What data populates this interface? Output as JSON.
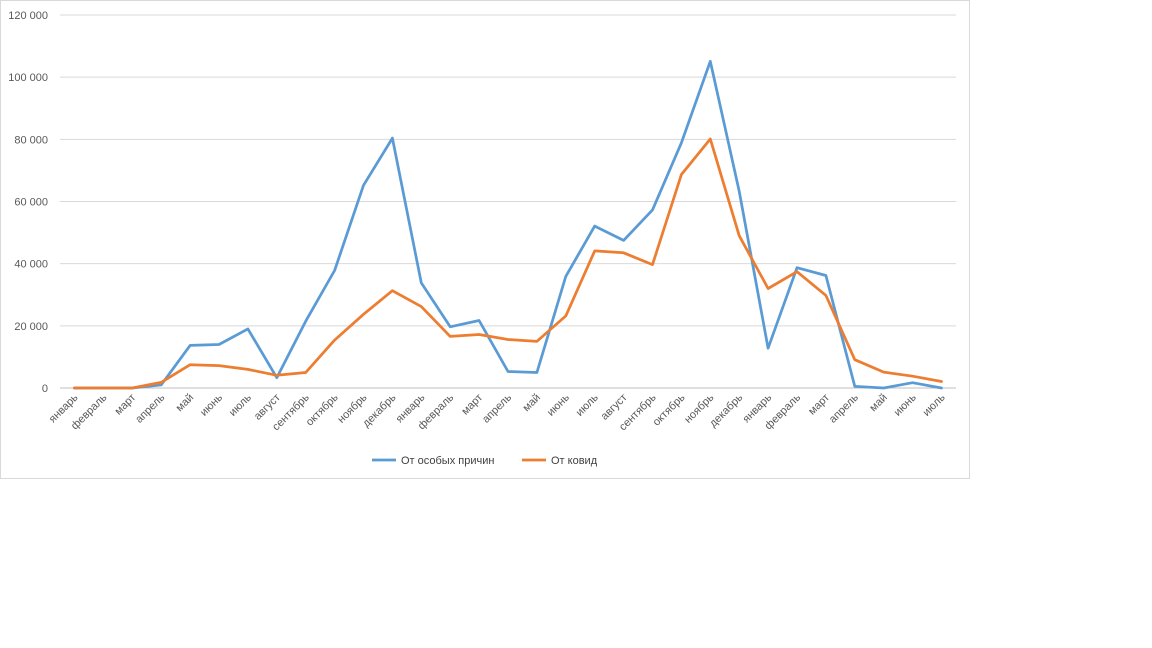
{
  "chart_data": {
    "type": "line",
    "title": "",
    "xlabel": "",
    "ylabel": "",
    "ylim": [
      0,
      120000
    ],
    "yticks": [
      0,
      20000,
      40000,
      60000,
      80000,
      100000,
      120000
    ],
    "ytick_labels": [
      "0",
      "20 000",
      "40 000",
      "60 000",
      "80 000",
      "100 000",
      "120 000"
    ],
    "grid": true,
    "legend_position": "bottom",
    "categories": [
      "январь",
      "февраль",
      "март",
      "апрель",
      "май",
      "июнь",
      "июль",
      "август",
      "сентябрь",
      "октябрь",
      "ноябрь",
      "декабрь",
      "январь",
      "февраль",
      "март",
      "апрель",
      "май",
      "июнь",
      "июль",
      "август",
      "сентябрь",
      "октябрь",
      "ноябрь",
      "декабрь",
      "январь",
      "февраль",
      "март",
      "апрель",
      "май",
      "июнь",
      "июль"
    ],
    "series": [
      {
        "name": "От особых причин",
        "color": "#5B9BD5",
        "values": [
          0,
          0,
          0,
          1000,
          13700,
          14000,
          19000,
          3300,
          21500,
          37800,
          65200,
          80400,
          33800,
          19700,
          21700,
          5300,
          5000,
          35900,
          52100,
          47500,
          57300,
          78900,
          105100,
          63300,
          12800,
          38700,
          36200,
          500,
          0,
          1700,
          0
        ]
      },
      {
        "name": "От ковид",
        "color": "#ED7D31",
        "values": [
          0,
          0,
          0,
          1800,
          7500,
          7200,
          6000,
          4100,
          5000,
          15400,
          23700,
          31300,
          26200,
          16600,
          17200,
          15600,
          15000,
          23200,
          44100,
          43500,
          39700,
          68700,
          80100,
          49000,
          32000,
          37400,
          29800,
          9100,
          5100,
          3800,
          2100
        ]
      }
    ]
  }
}
